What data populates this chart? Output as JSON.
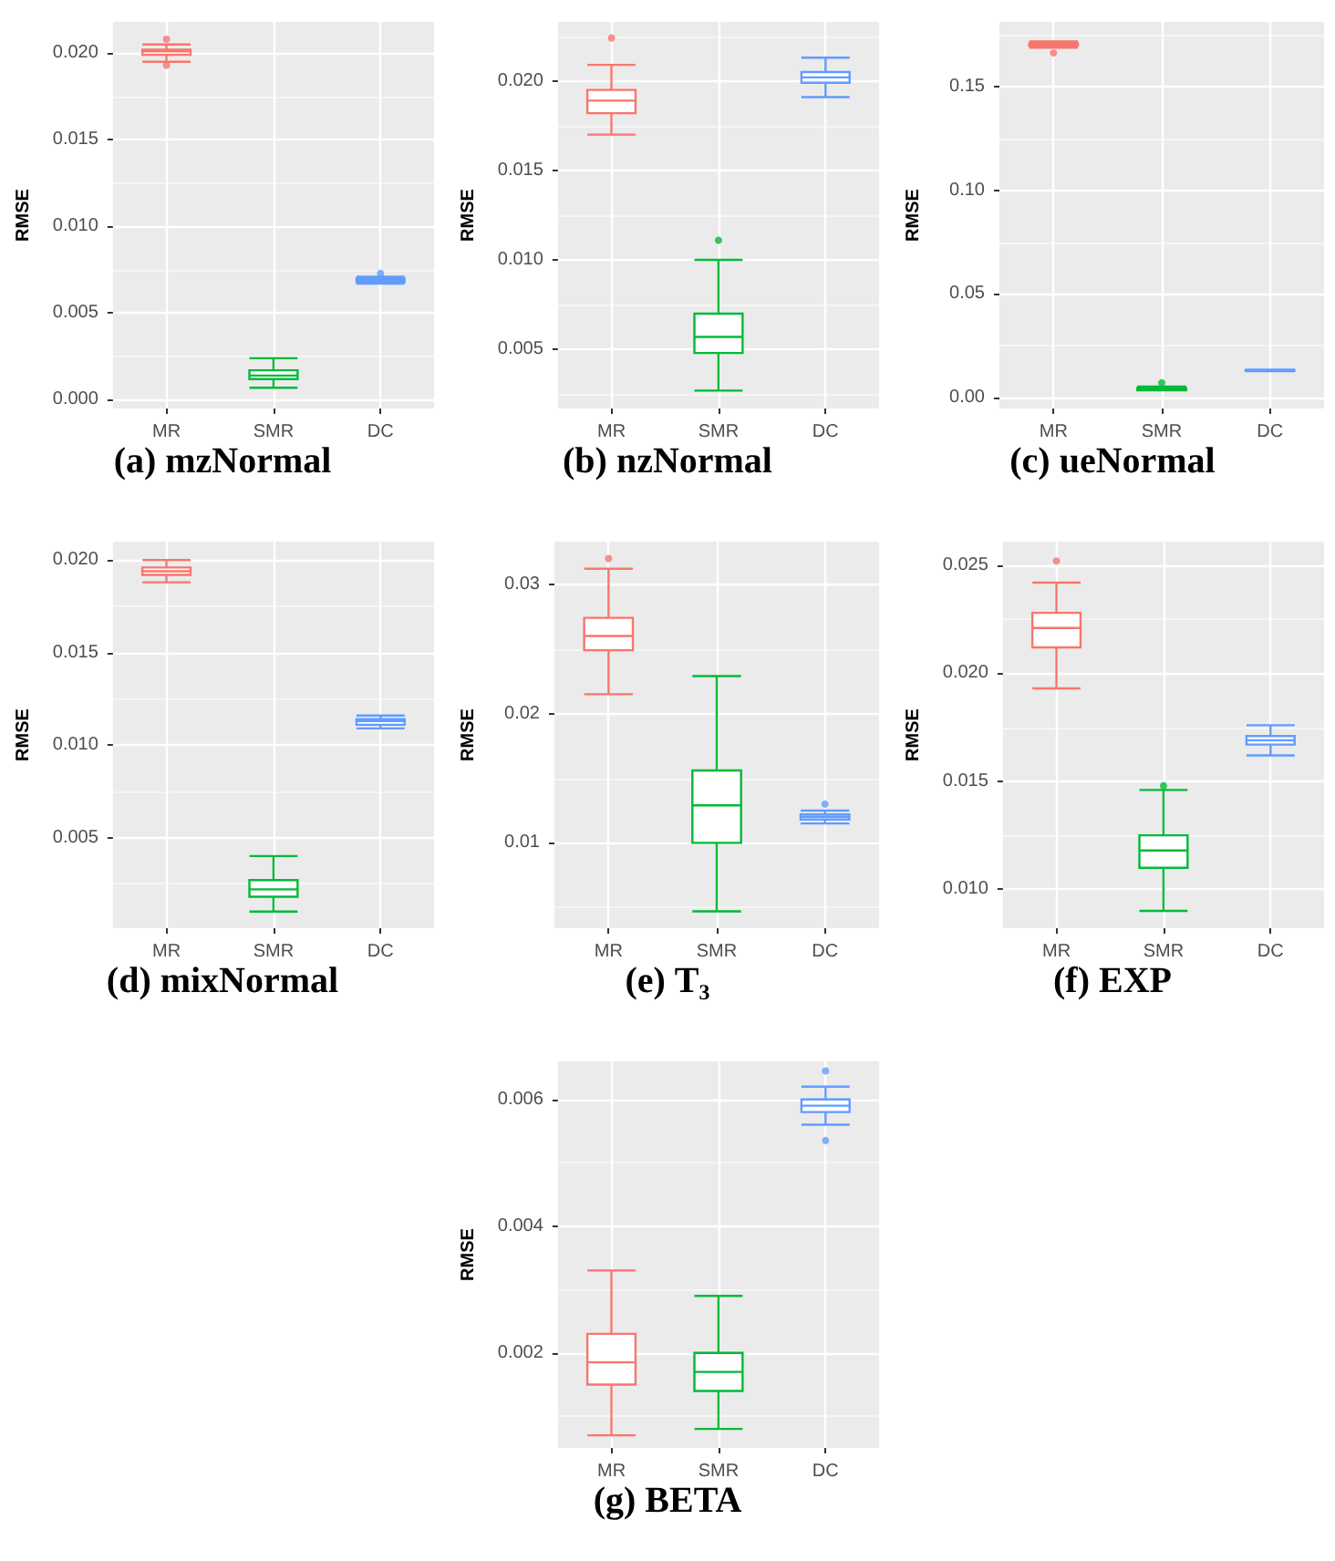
{
  "chart_data": [
    {
      "type": "box",
      "title": "(a) mzNormal",
      "ylabel": "RMSE",
      "categories": [
        "MR",
        "SMR",
        "DC"
      ],
      "colors": [
        "#f8766d",
        "#00ba38",
        "#619cff"
      ],
      "ylim": [
        -0.0005,
        0.0218
      ],
      "yticks": [
        {
          "value": 0,
          "label": "0.000"
        },
        {
          "value": 0.005,
          "label": "0.005"
        },
        {
          "value": 0.01,
          "label": "0.010"
        },
        {
          "value": 0.015,
          "label": "0.015"
        },
        {
          "value": 0.02,
          "label": "0.020"
        }
      ],
      "grid": true,
      "boxes": [
        {
          "low": 0.0195,
          "q1": 0.0199,
          "median": 0.0201,
          "q3": 0.0202,
          "high": 0.0205,
          "outliers": [
            0.0193,
            0.0208
          ]
        },
        {
          "low": 0.0007,
          "q1": 0.0012,
          "median": 0.0014,
          "q3": 0.0017,
          "high": 0.0024
        },
        {
          "low": 0.0067,
          "q1": 0.0068,
          "median": 0.0069,
          "q3": 0.007,
          "high": 0.0071,
          "outliers": [
            0.0073
          ]
        }
      ]
    },
    {
      "type": "box",
      "title": "(b) nzNormal",
      "ylabel": "RMSE",
      "categories": [
        "MR",
        "SMR",
        "DC"
      ],
      "colors": [
        "#f8766d",
        "#00ba38",
        "#619cff"
      ],
      "ylim": [
        0.0017,
        0.0233
      ],
      "yticks": [
        {
          "value": 0.005,
          "label": "0.005"
        },
        {
          "value": 0.01,
          "label": "0.010"
        },
        {
          "value": 0.015,
          "label": "0.015"
        },
        {
          "value": 0.02,
          "label": "0.020"
        }
      ],
      "grid": true,
      "boxes": [
        {
          "low": 0.017,
          "q1": 0.0182,
          "median": 0.0189,
          "q3": 0.0195,
          "high": 0.0209,
          "outliers": [
            0.0224
          ]
        },
        {
          "low": 0.0027,
          "q1": 0.0048,
          "median": 0.0057,
          "q3": 0.007,
          "high": 0.01,
          "outliers": [
            0.0111
          ]
        },
        {
          "low": 0.0191,
          "q1": 0.0199,
          "median": 0.0202,
          "q3": 0.0205,
          "high": 0.0213
        }
      ]
    },
    {
      "type": "box",
      "title": "(c) ueNormal",
      "ylabel": "RMSE",
      "categories": [
        "MR",
        "SMR",
        "DC"
      ],
      "colors": [
        "#f8766d",
        "#00ba38",
        "#619cff"
      ],
      "ylim": [
        -0.0054,
        0.1815
      ],
      "yticks": [
        {
          "value": 0,
          "label": "0.00"
        },
        {
          "value": 0.05,
          "label": "0.05"
        },
        {
          "value": 0.1,
          "label": "0.10"
        },
        {
          "value": 0.15,
          "label": "0.15"
        }
      ],
      "grid": true,
      "boxes": [
        {
          "low": 0.169,
          "q1": 0.17,
          "median": 0.1705,
          "q3": 0.171,
          "high": 0.172,
          "outliers": [
            0.1665
          ]
        },
        {
          "low": 0.0034,
          "q1": 0.0034,
          "median": 0.0039,
          "q3": 0.0045,
          "high": 0.0052,
          "outliers": [
            0.007
          ]
        },
        {
          "low": 0.0126,
          "q1": 0.0128,
          "median": 0.013,
          "q3": 0.0132,
          "high": 0.0134
        }
      ]
    },
    {
      "type": "box",
      "title": "(d) mixNormal",
      "ylabel": "RMSE",
      "categories": [
        "MR",
        "SMR",
        "DC"
      ],
      "colors": [
        "#f8766d",
        "#00ba38",
        "#619cff"
      ],
      "ylim": [
        0.0001,
        0.021
      ],
      "yticks": [
        {
          "value": 0.005,
          "label": "0.005"
        },
        {
          "value": 0.01,
          "label": "0.010"
        },
        {
          "value": 0.015,
          "label": "0.015"
        },
        {
          "value": 0.02,
          "label": "0.020"
        }
      ],
      "grid": true,
      "boxes": [
        {
          "low": 0.0188,
          "q1": 0.0192,
          "median": 0.0194,
          "q3": 0.0196,
          "high": 0.02
        },
        {
          "low": 0.001,
          "q1": 0.0018,
          "median": 0.0022,
          "q3": 0.0027,
          "high": 0.004
        },
        {
          "low": 0.0109,
          "q1": 0.0111,
          "median": 0.0113,
          "q3": 0.0114,
          "high": 0.0116
        }
      ]
    },
    {
      "type": "box",
      "title": "(e) T₃",
      "ylabel": "RMSE",
      "categories": [
        "MR",
        "SMR",
        "DC"
      ],
      "colors": [
        "#f8766d",
        "#00ba38",
        "#619cff"
      ],
      "ylim": [
        0.0034,
        0.0333
      ],
      "yticks": [
        0.01,
        0.02,
        0.03
      ],
      "grid": true,
      "boxes": [
        {
          "low": 0.0215,
          "q1": 0.0249,
          "median": 0.026,
          "q3": 0.0274,
          "high": 0.0312,
          "outliers": [
            0.032
          ]
        },
        {
          "low": 0.0047,
          "q1": 0.01,
          "median": 0.0129,
          "q3": 0.0156,
          "high": 0.0229
        },
        {
          "low": 0.0115,
          "q1": 0.0118,
          "median": 0.012,
          "q3": 0.0122,
          "high": 0.0125,
          "outliers": [
            0.013
          ]
        }
      ]
    },
    {
      "type": "box",
      "title": "(f) EXP",
      "ylabel": "RMSE",
      "categories": [
        "MR",
        "SMR",
        "DC"
      ],
      "colors": [
        "#f8766d",
        "#00ba38",
        "#619cff"
      ],
      "ylim": [
        0.0082,
        0.0261
      ],
      "yticks": [
        {
          "value": 0.01,
          "label": "0.010"
        },
        {
          "value": 0.015,
          "label": "0.015"
        },
        {
          "value": 0.02,
          "label": "0.020"
        },
        {
          "value": 0.025,
          "label": "0.025"
        }
      ],
      "grid": true,
      "boxes": [
        {
          "low": 0.0193,
          "q1": 0.0212,
          "median": 0.0221,
          "q3": 0.0228,
          "high": 0.0242,
          "outliers": [
            0.0252
          ]
        },
        {
          "low": 0.009,
          "q1": 0.011,
          "median": 0.0118,
          "q3": 0.0125,
          "high": 0.0146,
          "outliers": [
            0.0148
          ]
        },
        {
          "low": 0.0162,
          "q1": 0.0167,
          "median": 0.0169,
          "q3": 0.0171,
          "high": 0.0176
        }
      ]
    },
    {
      "type": "box",
      "title": "(g) BETA",
      "ylabel": "RMSE",
      "categories": [
        "MR",
        "SMR",
        "DC"
      ],
      "colors": [
        "#f8766d",
        "#00ba38",
        "#619cff"
      ],
      "ylim": [
        0.0005,
        0.0066
      ],
      "yticks": [
        {
          "value": 0.002,
          "label": "0.002"
        },
        {
          "value": 0.004,
          "label": "0.004"
        },
        {
          "value": 0.006,
          "label": "0.006"
        }
      ],
      "grid": true,
      "boxes": [
        {
          "low": 0.0007,
          "q1": 0.0015,
          "median": 0.00185,
          "q3": 0.0023,
          "high": 0.0033
        },
        {
          "low": 0.0008,
          "q1": 0.0014,
          "median": 0.0017,
          "q3": 0.002,
          "high": 0.0029
        },
        {
          "low": 0.0056,
          "q1": 0.0058,
          "median": 0.0059,
          "q3": 0.006,
          "high": 0.0062,
          "outliers": [
            0.00535,
            0.00645
          ]
        }
      ]
    }
  ]
}
